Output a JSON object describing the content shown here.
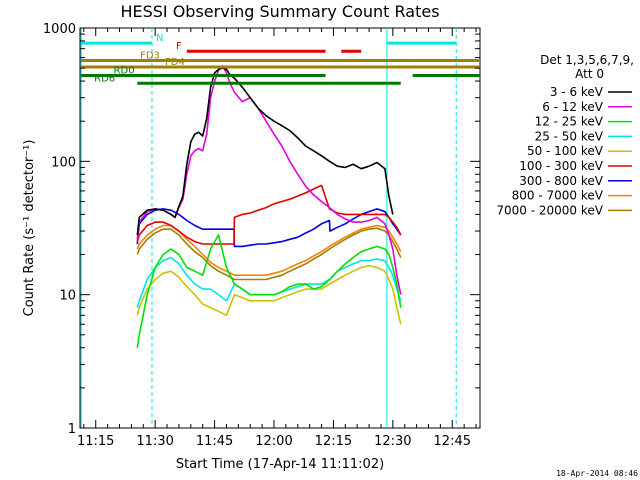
{
  "chart_data": {
    "type": "line",
    "title": "HESSI Observing Summary Count Rates",
    "xlabel": "Start Time (17-Apr-14 11:11:02)",
    "ylabel": "Count Rate (s⁻¹ detector⁻¹)",
    "x_tick_labels": [
      "11:15",
      "11:30",
      "11:45",
      "12:00",
      "12:15",
      "12:30",
      "12:45"
    ],
    "x_ticks_min": [
      675,
      690,
      705,
      720,
      735,
      750,
      765
    ],
    "xlim_min": [
      671.03,
      772.0
    ],
    "y_tick_labels": [
      "1",
      "10",
      "100",
      "1000"
    ],
    "y_scale": "log",
    "ylim": [
      1,
      1000
    ],
    "legend": {
      "header": [
        "Det 1,3,5,6,7,9,",
        "Att 0"
      ],
      "placement": "right"
    },
    "vlines_min": [
      {
        "x": 671.3,
        "color": "#00e5e5",
        "style": "solid"
      },
      {
        "x": 689.2,
        "color": "#00e5e5",
        "style": "dashed"
      },
      {
        "x": 748.5,
        "color": "#00e5e5",
        "style": "solid"
      },
      {
        "x": 766.0,
        "color": "#00e5e5",
        "style": "dashed"
      }
    ],
    "flag_bars": [
      {
        "label": "N",
        "color": "#00e5e5",
        "row_value": 770,
        "segments": [
          [
            671.3,
            689.2
          ],
          [
            748.5,
            766.0
          ]
        ]
      },
      {
        "label": "F",
        "color": "#e00000",
        "row_value": 670,
        "segments": [
          [
            698.0,
            733.0
          ],
          [
            737.0,
            742.0
          ]
        ]
      },
      {
        "label": "FD3",
        "color": "#a08000",
        "row_value": 570,
        "segments": [
          [
            671.3,
            772.0
          ]
        ]
      },
      {
        "label": "FD4",
        "color": "#a08000",
        "row_value": 510,
        "segments": [
          [
            671.3,
            772.0
          ]
        ]
      },
      {
        "label": "RD0",
        "color": "#007800",
        "row_value": 440,
        "segments": [
          [
            671.3,
            733.0
          ],
          [
            755.0,
            772.0
          ]
        ]
      },
      {
        "label": "RD6",
        "color": "#007800",
        "row_value": 385,
        "segments": [
          [
            685.5,
            735.0
          ],
          [
            735.0,
            752.0
          ]
        ]
      }
    ],
    "series": [
      {
        "name": "3 - 6 keV",
        "color": "#000000",
        "x": [
          685.5,
          686,
          688,
          690,
          692,
          694,
          695,
          696,
          697,
          698,
          699,
          700,
          701,
          702,
          703,
          704,
          705,
          706,
          707,
          708,
          709,
          710,
          712,
          714,
          716,
          718,
          720,
          722,
          724,
          726,
          728,
          730,
          732,
          734,
          736,
          738,
          740,
          742,
          744,
          746,
          748,
          749,
          750
        ],
        "y": [
          28,
          38,
          43,
          44,
          43,
          40,
          38,
          46,
          55,
          95,
          140,
          160,
          165,
          155,
          210,
          360,
          460,
          490,
          500,
          490,
          440,
          420,
          360,
          300,
          250,
          220,
          200,
          185,
          170,
          150,
          130,
          120,
          110,
          100,
          92,
          90,
          95,
          88,
          92,
          98,
          88,
          55,
          40
        ]
      },
      {
        "name": "6 - 12 keV",
        "color": "#e000e0",
        "x": [
          685.5,
          686,
          688,
          690,
          692,
          694,
          695,
          696,
          697,
          698,
          699,
          700,
          701,
          702,
          703,
          704,
          705,
          706,
          707,
          708,
          709,
          710,
          712,
          714,
          716,
          718,
          720,
          722,
          724,
          726,
          728,
          730,
          732,
          734,
          736,
          738,
          740,
          742,
          744,
          746,
          748,
          749,
          750,
          751,
          752
        ],
        "y": [
          26,
          35,
          42,
          44,
          43,
          40,
          38,
          45,
          52,
          80,
          110,
          120,
          125,
          120,
          160,
          300,
          400,
          480,
          520,
          460,
          380,
          330,
          280,
          300,
          250,
          200,
          160,
          130,
          100,
          80,
          65,
          56,
          50,
          45,
          40,
          37,
          35,
          35,
          36,
          38,
          34,
          28,
          22,
          14,
          10
        ]
      },
      {
        "name": "12 - 25 keV",
        "color": "#00e000",
        "x": [
          685.5,
          686,
          688,
          690,
          692,
          694,
          696,
          698,
          700,
          702,
          704,
          706,
          708,
          710,
          712,
          714,
          716,
          718,
          720,
          722,
          724,
          726,
          728,
          730,
          732,
          734,
          736,
          738,
          740,
          742,
          744,
          746,
          748,
          749,
          750,
          751,
          752
        ],
        "y": [
          4,
          5,
          10,
          16,
          20,
          22,
          20,
          16,
          15,
          14,
          22,
          28,
          16,
          12,
          11,
          10,
          10,
          10,
          10,
          10.5,
          11.5,
          12,
          12,
          11,
          11.5,
          13,
          15,
          17,
          19,
          21,
          22,
          23,
          22,
          20,
          16,
          12,
          8
        ]
      },
      {
        "name": "25 - 50 keV",
        "color": "#00e5e5",
        "x": [
          685.5,
          686,
          688,
          690,
          692,
          694,
          696,
          698,
          700,
          702,
          704,
          706,
          708,
          710,
          712,
          714,
          716,
          718,
          720,
          722,
          724,
          726,
          728,
          730,
          732,
          734,
          736,
          738,
          740,
          742,
          744,
          746,
          748,
          749,
          750,
          751,
          752
        ],
        "y": [
          8,
          9,
          13,
          16,
          18,
          19,
          17,
          14,
          12,
          11,
          11,
          10,
          9,
          12,
          11,
          10,
          10,
          10,
          10,
          10.5,
          11,
          11.5,
          12,
          12,
          12,
          13,
          15,
          16,
          17,
          18,
          18,
          18.5,
          18,
          16,
          14,
          11,
          9
        ]
      },
      {
        "name": "50 - 100 keV",
        "color": "#d0c000",
        "x": [
          685.5,
          686,
          688,
          690,
          692,
          694,
          696,
          698,
          700,
          702,
          704,
          706,
          708,
          710,
          712,
          714,
          716,
          718,
          720,
          722,
          724,
          726,
          728,
          730,
          732,
          734,
          736,
          738,
          740,
          742,
          744,
          746,
          748,
          749,
          750,
          751,
          752
        ],
        "y": [
          7,
          8,
          11,
          13,
          14.5,
          15,
          13.5,
          11.5,
          10,
          8.5,
          8,
          7.5,
          7,
          10,
          9.5,
          9,
          9,
          9,
          9,
          9.5,
          10,
          10.5,
          11,
          11,
          11,
          12,
          13,
          14,
          15,
          16,
          16.5,
          16,
          15,
          13,
          11,
          8,
          6
        ]
      },
      {
        "name": "100 - 300 keV",
        "color": "#e00000",
        "x": [
          685.5,
          686,
          688,
          690,
          692,
          694,
          696,
          698,
          700,
          702,
          704,
          706,
          708,
          709.9,
          710,
          712,
          714,
          716,
          718,
          720,
          722,
          724,
          726,
          728,
          730,
          732,
          734,
          736,
          738,
          740,
          742,
          744,
          746,
          748,
          749,
          750,
          751,
          752
        ],
        "y": [
          25,
          28,
          33,
          35,
          35,
          33,
          30,
          27,
          25,
          24,
          24,
          24,
          24,
          24,
          38,
          40,
          41,
          43,
          45,
          48,
          50,
          52,
          55,
          58,
          62,
          66,
          44,
          41,
          40,
          40,
          40,
          40,
          40,
          40,
          38,
          35,
          32,
          28
        ]
      },
      {
        "name": "300 - 800 keV",
        "color": "#0000e0",
        "x": [
          685.5,
          686,
          688,
          690,
          692,
          694,
          696,
          698,
          700,
          702,
          704,
          706,
          708,
          709.9,
          710,
          712,
          714,
          716,
          718,
          720,
          722,
          724,
          726,
          728,
          730,
          732,
          734,
          734.1,
          736,
          738,
          740,
          742,
          744,
          746,
          748,
          749,
          750,
          751,
          752
        ],
        "y": [
          24,
          34,
          40,
          43,
          44,
          43,
          40,
          36,
          33,
          31,
          31,
          31,
          31,
          31,
          23,
          23,
          23.5,
          24,
          24,
          24.5,
          25,
          26,
          27,
          29,
          31,
          34,
          36,
          30,
          32,
          34,
          37,
          40,
          42,
          44,
          42,
          38,
          34,
          31,
          28
        ]
      },
      {
        "name": "800 - 7000 keV",
        "color": "#ff8000",
        "x": [
          685.5,
          686,
          688,
          690,
          692,
          694,
          696,
          698,
          700,
          702,
          704,
          706,
          708,
          710,
          712,
          714,
          716,
          718,
          720,
          722,
          724,
          726,
          728,
          730,
          732,
          734,
          736,
          738,
          740,
          742,
          744,
          746,
          748,
          749,
          750,
          751,
          752
        ],
        "y": [
          22,
          24,
          28,
          31,
          33,
          33,
          30,
          26,
          23,
          20,
          17.5,
          16,
          15,
          14,
          14,
          14,
          14,
          14,
          14.5,
          15,
          16,
          17,
          18,
          19.5,
          21,
          23,
          25,
          27,
          29,
          31,
          32,
          33,
          32,
          30,
          27,
          24,
          21
        ]
      },
      {
        "name": "7000 - 20000 keV",
        "color": "#a08000",
        "x": [
          685.5,
          686,
          688,
          690,
          692,
          694,
          696,
          698,
          700,
          702,
          704,
          706,
          708,
          710,
          712,
          714,
          716,
          718,
          720,
          722,
          724,
          726,
          728,
          730,
          732,
          734,
          736,
          738,
          740,
          742,
          744,
          746,
          748,
          749,
          750,
          751,
          752
        ],
        "y": [
          20,
          22,
          26,
          29,
          31,
          31,
          28,
          24,
          21,
          19,
          16.5,
          15,
          14,
          13,
          13,
          13,
          13,
          13,
          13.5,
          14,
          15,
          16,
          17,
          18.5,
          20,
          22,
          24,
          26,
          28,
          30,
          31,
          31.5,
          30,
          28,
          25,
          22,
          19
        ]
      }
    ]
  },
  "timestamp": "18-Apr-2014 08:46"
}
